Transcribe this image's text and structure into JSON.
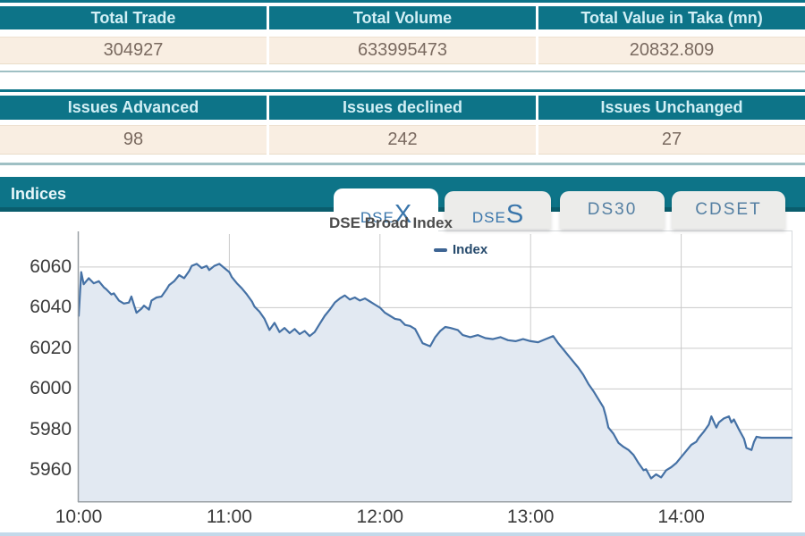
{
  "summary_tables": [
    {
      "headers": [
        "Total Trade",
        "Total Volume",
        "Total Value in Taka (mn)"
      ],
      "values": [
        "304927",
        "633995473",
        "20832.809"
      ]
    },
    {
      "headers": [
        "Issues Advanced",
        "Issues declined",
        "Issues Unchanged"
      ],
      "values": [
        "98",
        "242",
        "27"
      ]
    }
  ],
  "indices": {
    "title": "Indices",
    "tabs": [
      {
        "label": "DSEX",
        "small": "DSE",
        "big": "X",
        "active": true
      },
      {
        "label": "DSES",
        "small": "DSE",
        "big": "S",
        "active": false
      },
      {
        "label": "DS30",
        "active": false
      },
      {
        "label": "CDSET",
        "active": false
      }
    ]
  },
  "chart_data": {
    "type": "area",
    "title": "DSE Broad Index",
    "xlabel": "",
    "ylabel": "",
    "x_unit": "minutes since 10:00",
    "xlim": [
      0,
      284
    ],
    "ylim": [
      5944.8,
      6076.2
    ],
    "grid": true,
    "legend_position": "top-center",
    "x_ticks": [
      {
        "t": 0,
        "label": "10:00"
      },
      {
        "t": 60,
        "label": "11:00"
      },
      {
        "t": 120,
        "label": "12:00"
      },
      {
        "t": 180,
        "label": "13:00"
      },
      {
        "t": 240,
        "label": "14:00"
      }
    ],
    "y_ticks": [
      5960,
      5980,
      6000,
      6020,
      6040,
      6060
    ],
    "series": [
      {
        "name": "Index",
        "color": "#4571a5",
        "fill": "#e2e9f2",
        "points": [
          [
            0,
            6036
          ],
          [
            1,
            6057.5
          ],
          [
            2,
            6051.5
          ],
          [
            3,
            6053
          ],
          [
            4,
            6054.5
          ],
          [
            6,
            6052
          ],
          [
            8,
            6053
          ],
          [
            10,
            6050
          ],
          [
            11,
            6049
          ],
          [
            13,
            6046.5
          ],
          [
            14,
            6047
          ],
          [
            16,
            6043.5
          ],
          [
            18,
            6042
          ],
          [
            20,
            6042.5
          ],
          [
            21,
            6045.5
          ],
          [
            22,
            6041.5
          ],
          [
            23,
            6037.5
          ],
          [
            25,
            6039.5
          ],
          [
            26,
            6041
          ],
          [
            28,
            6039
          ],
          [
            29,
            6043.5
          ],
          [
            31,
            6045
          ],
          [
            33,
            6045.5
          ],
          [
            35,
            6049
          ],
          [
            36,
            6051
          ],
          [
            38,
            6053
          ],
          [
            40,
            6056
          ],
          [
            42,
            6054.5
          ],
          [
            44,
            6058
          ],
          [
            45,
            6060.5
          ],
          [
            47,
            6061.5
          ],
          [
            49,
            6059.5
          ],
          [
            51,
            6060.5
          ],
          [
            52,
            6058.5
          ],
          [
            54,
            6060.5
          ],
          [
            56,
            6061.5
          ],
          [
            58,
            6059.5
          ],
          [
            60,
            6057.5
          ],
          [
            61,
            6055
          ],
          [
            63,
            6052
          ],
          [
            65,
            6049.5
          ],
          [
            67,
            6046.5
          ],
          [
            69,
            6043
          ],
          [
            70,
            6040.5
          ],
          [
            72,
            6038
          ],
          [
            74,
            6034.5
          ],
          [
            76,
            6029
          ],
          [
            78,
            6032.5
          ],
          [
            80,
            6028
          ],
          [
            82,
            6030
          ],
          [
            84,
            6027.5
          ],
          [
            86,
            6029.5
          ],
          [
            88,
            6027
          ],
          [
            90,
            6028.5
          ],
          [
            92,
            6026
          ],
          [
            94,
            6028
          ],
          [
            96,
            6032
          ],
          [
            98,
            6036
          ],
          [
            100,
            6039
          ],
          [
            102,
            6042.5
          ],
          [
            104,
            6044.5
          ],
          [
            106,
            6046
          ],
          [
            108,
            6044
          ],
          [
            110,
            6045
          ],
          [
            112,
            6043.5
          ],
          [
            114,
            6044.5
          ],
          [
            116,
            6043
          ],
          [
            118,
            6041.5
          ],
          [
            120,
            6040
          ],
          [
            122,
            6037.5
          ],
          [
            124,
            6036
          ],
          [
            126,
            6034.5
          ],
          [
            128,
            6034
          ],
          [
            130,
            6031.5
          ],
          [
            132,
            6031
          ],
          [
            134,
            6029.5
          ],
          [
            137,
            6022.5
          ],
          [
            140,
            6021
          ],
          [
            142,
            6025.5
          ],
          [
            144,
            6028.5
          ],
          [
            146,
            6030.5
          ],
          [
            148,
            6030
          ],
          [
            151,
            6029
          ],
          [
            153,
            6026.5
          ],
          [
            156,
            6025.5
          ],
          [
            159,
            6026.5
          ],
          [
            162,
            6025
          ],
          [
            165,
            6024.5
          ],
          [
            168,
            6025.5
          ],
          [
            171,
            6024
          ],
          [
            174,
            6023.5
          ],
          [
            177,
            6024.5
          ],
          [
            180,
            6023.5
          ],
          [
            183,
            6023
          ],
          [
            186,
            6024.5
          ],
          [
            189,
            6026
          ],
          [
            191,
            6022.5
          ],
          [
            193,
            6019.5
          ],
          [
            196,
            6015
          ],
          [
            199,
            6010.5
          ],
          [
            201,
            6007
          ],
          [
            203,
            6002.5
          ],
          [
            205,
            5999
          ],
          [
            207,
            5995
          ],
          [
            209,
            5991
          ],
          [
            210,
            5986.5
          ],
          [
            211,
            5981
          ],
          [
            213,
            5978
          ],
          [
            215,
            5973.5
          ],
          [
            217,
            5971.5
          ],
          [
            219,
            5970
          ],
          [
            221,
            5967.5
          ],
          [
            223,
            5963.5
          ],
          [
            225,
            5960
          ],
          [
            226,
            5960.5
          ],
          [
            228,
            5956
          ],
          [
            230,
            5958
          ],
          [
            232,
            5956.5
          ],
          [
            234,
            5960
          ],
          [
            236,
            5961.5
          ],
          [
            238,
            5963.5
          ],
          [
            240,
            5966.5
          ],
          [
            242,
            5969.5
          ],
          [
            244,
            5972.5
          ],
          [
            246,
            5974
          ],
          [
            247,
            5976
          ],
          [
            249,
            5979
          ],
          [
            251,
            5982.5
          ],
          [
            252,
            5986.5
          ],
          [
            254,
            5981
          ],
          [
            255,
            5983.5
          ],
          [
            257,
            5985.5
          ],
          [
            259,
            5986.5
          ],
          [
            260,
            5983.5
          ],
          [
            261,
            5985
          ],
          [
            263,
            5980
          ],
          [
            265,
            5975.5
          ],
          [
            266,
            5971
          ],
          [
            268,
            5970
          ],
          [
            269,
            5974
          ],
          [
            270,
            5976.5
          ],
          [
            272,
            5976
          ],
          [
            284,
            5976
          ]
        ]
      }
    ]
  },
  "colors": {
    "teal": "#0d7488",
    "teal_dark": "#0a5d6d",
    "cream_row": "#f9eee2",
    "header_text": "#d2eff5",
    "value_text": "#7a6a60",
    "tab_text": "#3a76ab",
    "tab_text_muted": "#5580a3",
    "series_line": "#4571a5",
    "series_fill": "#e2e9f2",
    "legend_text": "#274b6d",
    "gridline": "#cacaca",
    "divider": "#9fc0c4",
    "bottom_rule": "#c3d9ea"
  }
}
